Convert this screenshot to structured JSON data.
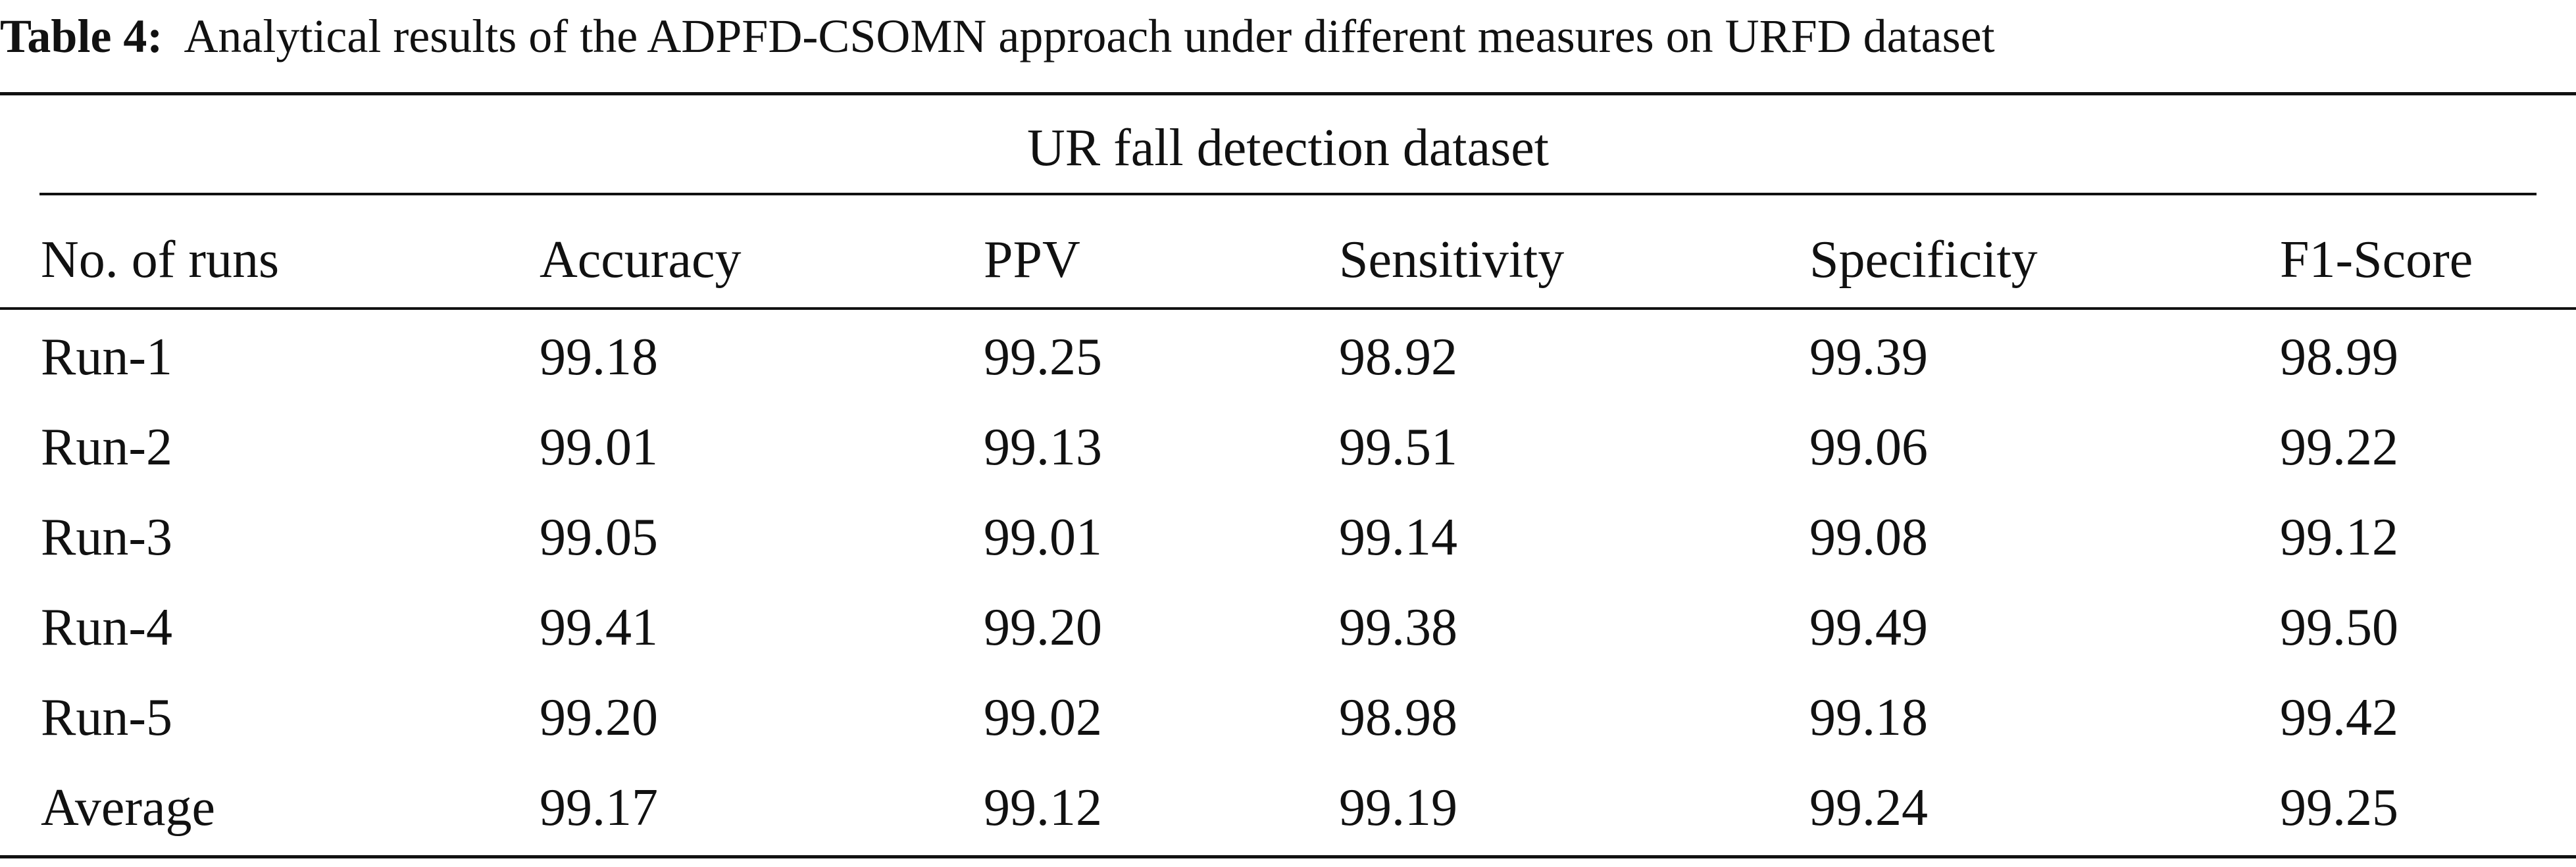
{
  "caption": {
    "label": "Table 4:",
    "text": "Analytical results of the ADPFD-CSOMN approach under different measures on URFD dataset"
  },
  "table": {
    "group_title": "UR fall detection dataset",
    "columns": [
      "No. of runs",
      "Accuracy",
      "PPV",
      "Sensitivity",
      "Specificity",
      "F1-Score"
    ],
    "rows": [
      [
        "Run-1",
        "99.18",
        "99.25",
        "98.92",
        "99.39",
        "98.99"
      ],
      [
        "Run-2",
        "99.01",
        "99.13",
        "99.51",
        "99.06",
        "99.22"
      ],
      [
        "Run-3",
        "99.05",
        "99.01",
        "99.14",
        "99.08",
        "99.12"
      ],
      [
        "Run-4",
        "99.41",
        "99.20",
        "99.38",
        "99.49",
        "99.50"
      ],
      [
        "Run-5",
        "99.20",
        "99.02",
        "98.98",
        "99.18",
        "99.42"
      ],
      [
        "Average",
        "99.17",
        "99.12",
        "99.19",
        "99.24",
        "99.25"
      ]
    ]
  }
}
